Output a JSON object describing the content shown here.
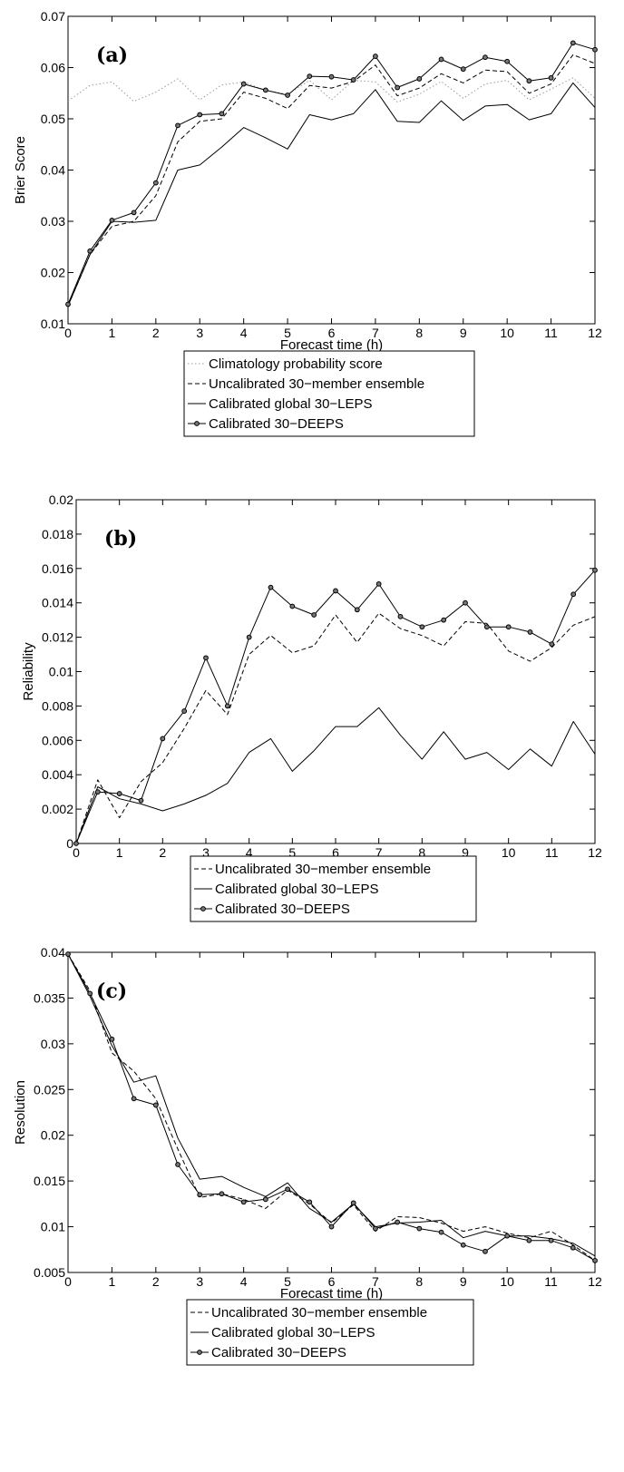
{
  "chart_data": [
    {
      "type": "line",
      "panel_label": "(a)",
      "xlabel": "Forecast time (h)",
      "ylabel": "Brier Score",
      "xlim": [
        0,
        12
      ],
      "ylim": [
        0.01,
        0.07
      ],
      "xticks": [
        "0",
        "1",
        "2",
        "3",
        "4",
        "5",
        "6",
        "7",
        "8",
        "9",
        "10",
        "11",
        "12"
      ],
      "yticks": [
        "0.01",
        "0.02",
        "0.03",
        "0.04",
        "0.05",
        "0.06",
        "0.07"
      ],
      "grid": false,
      "legend_position": "below",
      "x": [
        0,
        0.5,
        1,
        1.5,
        2,
        2.5,
        3,
        3.5,
        4,
        4.5,
        5,
        5.5,
        6,
        6.5,
        7,
        7.5,
        8,
        8.5,
        9,
        9.5,
        10,
        10.5,
        11,
        11.5,
        12
      ],
      "series": [
        {
          "name": "Climatology probability score",
          "style": "dotted",
          "values": [
            0.0535,
            0.0565,
            0.0572,
            0.0534,
            0.0552,
            0.0578,
            0.0537,
            0.0566,
            0.0572,
            0.0555,
            0.0548,
            0.0575,
            0.0537,
            0.0575,
            0.0572,
            0.0533,
            0.0548,
            0.0573,
            0.054,
            0.0568,
            0.0575,
            0.0537,
            0.0558,
            0.058,
            0.054
          ]
        },
        {
          "name": "Uncalibrated 30−member ensemble",
          "style": "dashed",
          "values": [
            0.0135,
            0.0235,
            0.029,
            0.03,
            0.035,
            0.0455,
            0.0495,
            0.05,
            0.0552,
            0.054,
            0.052,
            0.0565,
            0.056,
            0.0573,
            0.0605,
            0.0545,
            0.056,
            0.0588,
            0.057,
            0.0595,
            0.0592,
            0.055,
            0.0568,
            0.0625,
            0.0608
          ]
        },
        {
          "name": "Calibrated global 30−LEPS",
          "style": "solid",
          "values": [
            0.0135,
            0.0235,
            0.03,
            0.0298,
            0.0302,
            0.04,
            0.041,
            0.0445,
            0.0483,
            0.0463,
            0.0441,
            0.0508,
            0.0498,
            0.051,
            0.0557,
            0.0495,
            0.0493,
            0.0535,
            0.0497,
            0.0525,
            0.0528,
            0.0498,
            0.051,
            0.057,
            0.0522
          ]
        },
        {
          "name": "Calibrated 30−DEEPS",
          "style": "solid-circle",
          "values": [
            0.0138,
            0.0242,
            0.0302,
            0.0317,
            0.0375,
            0.0487,
            0.0508,
            0.051,
            0.0568,
            0.0556,
            0.0546,
            0.0583,
            0.0582,
            0.0576,
            0.0622,
            0.0561,
            0.0578,
            0.0616,
            0.0597,
            0.062,
            0.0612,
            0.0574,
            0.058,
            0.0648,
            0.0635
          ]
        }
      ]
    },
    {
      "type": "line",
      "panel_label": "(b)",
      "xlabel": "Forecast time (h)",
      "ylabel": "Reliability",
      "xlim": [
        0,
        12
      ],
      "ylim": [
        0,
        0.02
      ],
      "xticks": [
        "0",
        "1",
        "2",
        "3",
        "4",
        "5",
        "6",
        "7",
        "8",
        "9",
        "10",
        "11",
        "12"
      ],
      "yticks": [
        "0",
        "0.002",
        "0.004",
        "0.006",
        "0.008",
        "0.01",
        "0.012",
        "0.014",
        "0.016",
        "0.018",
        "0.02"
      ],
      "grid": false,
      "legend_position": "below",
      "x": [
        0,
        0.5,
        1,
        1.5,
        2,
        2.5,
        3,
        3.5,
        4,
        4.5,
        5,
        5.5,
        6,
        6.5,
        7,
        7.5,
        8,
        8.5,
        9,
        9.5,
        10,
        10.5,
        11,
        11.5,
        12
      ],
      "series": [
        {
          "name": "Uncalibrated 30−member ensemble",
          "style": "dashed",
          "values": [
            0.0,
            0.0037,
            0.0015,
            0.0036,
            0.0047,
            0.0067,
            0.0089,
            0.0075,
            0.011,
            0.0121,
            0.0111,
            0.0115,
            0.0133,
            0.0117,
            0.0134,
            0.0125,
            0.0121,
            0.0115,
            0.0129,
            0.0128,
            0.0112,
            0.0106,
            0.0114,
            0.0127,
            0.0132
          ]
        },
        {
          "name": "Calibrated global 30−LEPS",
          "style": "solid",
          "values": [
            0.0,
            0.0033,
            0.0026,
            0.0023,
            0.0019,
            0.0023,
            0.0028,
            0.0035,
            0.0053,
            0.0061,
            0.0042,
            0.0054,
            0.0068,
            0.0068,
            0.0079,
            0.0063,
            0.0049,
            0.0065,
            0.0049,
            0.0053,
            0.0043,
            0.0055,
            0.0045,
            0.0071,
            0.0052
          ]
        },
        {
          "name": "Calibrated 30−DEEPS",
          "style": "solid-circle",
          "values": [
            0.0,
            0.003,
            0.0029,
            0.0025,
            0.0061,
            0.0077,
            0.0108,
            0.008,
            0.012,
            0.0149,
            0.0138,
            0.0133,
            0.0147,
            0.0136,
            0.0151,
            0.0132,
            0.0126,
            0.013,
            0.014,
            0.0126,
            0.0126,
            0.0123,
            0.0116,
            0.0145,
            0.0159
          ]
        }
      ]
    },
    {
      "type": "line",
      "panel_label": "(c)",
      "xlabel": "Forecast time (h)",
      "ylabel": "Resolution",
      "xlim": [
        0,
        12
      ],
      "ylim": [
        0.005,
        0.04
      ],
      "xticks": [
        "0",
        "1",
        "2",
        "3",
        "4",
        "5",
        "6",
        "7",
        "8",
        "9",
        "10",
        "11",
        "12"
      ],
      "yticks": [
        "0.005",
        "0.01",
        "0.015",
        "0.02",
        "0.025",
        "0.03",
        "0.035",
        "0.04"
      ],
      "grid": false,
      "legend_position": "below",
      "x": [
        0,
        0.5,
        1,
        1.5,
        2,
        2.5,
        3,
        3.5,
        4,
        4.5,
        5,
        5.5,
        6,
        6.5,
        7,
        7.5,
        8,
        8.5,
        9,
        9.5,
        10,
        10.5,
        11,
        11.5,
        12
      ],
      "series": [
        {
          "name": "Uncalibrated 30−member ensemble",
          "style": "dashed",
          "values": [
            0.0398,
            0.0358,
            0.029,
            0.027,
            0.024,
            0.0185,
            0.0132,
            0.0136,
            0.013,
            0.012,
            0.014,
            0.0125,
            0.0104,
            0.0124,
            0.0095,
            0.0111,
            0.011,
            0.0104,
            0.0095,
            0.01,
            0.0093,
            0.0088,
            0.0095,
            0.008,
            0.0063
          ]
        },
        {
          "name": "Calibrated global 30−LEPS",
          "style": "solid",
          "values": [
            0.0398,
            0.0352,
            0.0298,
            0.0258,
            0.0265,
            0.0197,
            0.0152,
            0.0155,
            0.0143,
            0.0133,
            0.0148,
            0.012,
            0.0105,
            0.0125,
            0.01,
            0.0104,
            0.0105,
            0.0107,
            0.0088,
            0.0095,
            0.009,
            0.009,
            0.0087,
            0.0082,
            0.0068
          ]
        },
        {
          "name": "Calibrated 30−DEEPS",
          "style": "solid-circle",
          "values": [
            0.0398,
            0.0355,
            0.0305,
            0.024,
            0.0233,
            0.0168,
            0.0135,
            0.0136,
            0.0127,
            0.013,
            0.0141,
            0.0127,
            0.01,
            0.0126,
            0.0098,
            0.0105,
            0.0098,
            0.0094,
            0.008,
            0.0073,
            0.009,
            0.0085,
            0.0085,
            0.0077,
            0.0063
          ]
        }
      ]
    }
  ]
}
